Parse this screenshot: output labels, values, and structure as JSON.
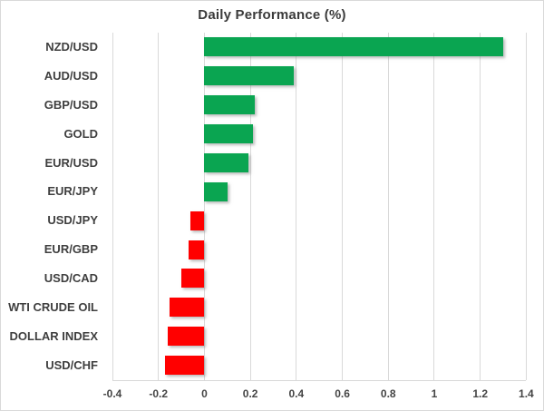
{
  "chart_data": {
    "type": "bar",
    "orientation": "horizontal",
    "title": "Daily Performance (%)",
    "categories": [
      "NZD/USD",
      "AUD/USD",
      "GBP/USD",
      "GOLD",
      "EUR/USD",
      "EUR/JPY",
      "USD/JPY",
      "EUR/GBP",
      "USD/CAD",
      "WTI CRUDE OIL",
      "DOLLAR INDEX",
      "USD/CHF"
    ],
    "values": [
      1.3,
      0.39,
      0.22,
      0.21,
      0.19,
      0.1,
      -0.06,
      -0.07,
      -0.1,
      -0.15,
      -0.16,
      -0.17
    ],
    "x_ticks": [
      -0.4,
      -0.2,
      0,
      0.2,
      0.4,
      0.6,
      0.8,
      1,
      1.2,
      1.4
    ],
    "x_tick_labels": [
      "-0.4",
      "-0.2",
      "0",
      "0.2",
      "0.4",
      "0.6",
      "0.8",
      "1",
      "1.2",
      "1.4"
    ],
    "xlim": [
      -0.4,
      1.4
    ],
    "grid": true,
    "legend": "none",
    "colors": {
      "positive_bar": "#0aa551",
      "negative_bar": "#ff0000",
      "gridline": "#d9d9d9",
      "title_text": "#3b3b3b",
      "category_text": "#3f3f3f",
      "tick_text": "#444444"
    }
  }
}
